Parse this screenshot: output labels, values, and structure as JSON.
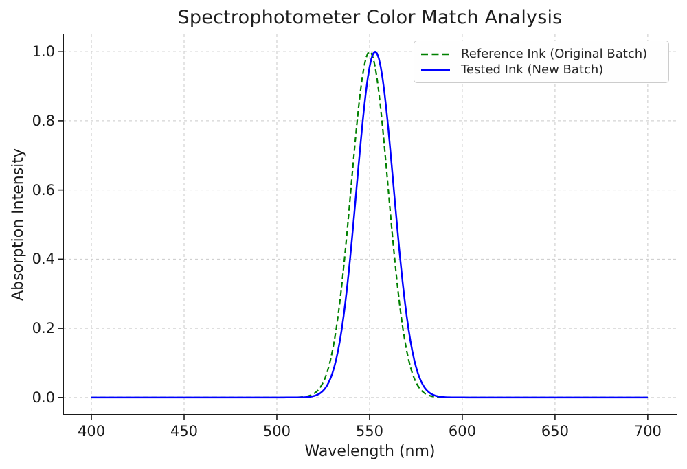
{
  "chart_data": {
    "type": "line",
    "title": "Spectrophotometer Color Match Analysis",
    "xlabel": "Wavelength (nm)",
    "ylabel": "Absorption Intensity",
    "xlim": [
      384.8,
      715.6
    ],
    "ylim": [
      -0.05,
      1.05
    ],
    "x_ticks": [
      400,
      450,
      500,
      550,
      600,
      650,
      700
    ],
    "y_ticks": [
      0.0,
      0.2,
      0.4,
      0.6,
      0.8,
      1.0
    ],
    "y_tick_labels": [
      "0.0",
      "0.2",
      "0.4",
      "0.6",
      "0.8",
      "1.0"
    ],
    "grid": {
      "visible": true,
      "style": "dashed",
      "color": "#c9c9c9"
    },
    "legend_position": "upper right",
    "spines": {
      "top": false,
      "right": false,
      "color": "#1a1a1a"
    },
    "x_start_nm": 400,
    "x_end_nm": 700,
    "sample_step_nm": 1,
    "y_formula": "amplitude * exp(-((x - peak_nm)^2) / (2 * sigma_nm^2))",
    "series": [
      {
        "name": "Reference Ink (Original Batch)",
        "color": "#008000",
        "line_style": "dashed",
        "line_width": 2.2,
        "dash_pattern": "8,4.5",
        "curve": "gaussian",
        "peak_nm": 550,
        "sigma_nm": 10,
        "amplitude": 1.0,
        "baseline": 0.0
      },
      {
        "name": "Tested Ink (New Batch)",
        "color": "#0000ff",
        "line_style": "solid",
        "line_width": 2.5,
        "dash_pattern": "",
        "curve": "gaussian",
        "peak_nm": 553,
        "sigma_nm": 10,
        "amplitude": 1.0,
        "baseline": 0.0
      }
    ]
  }
}
